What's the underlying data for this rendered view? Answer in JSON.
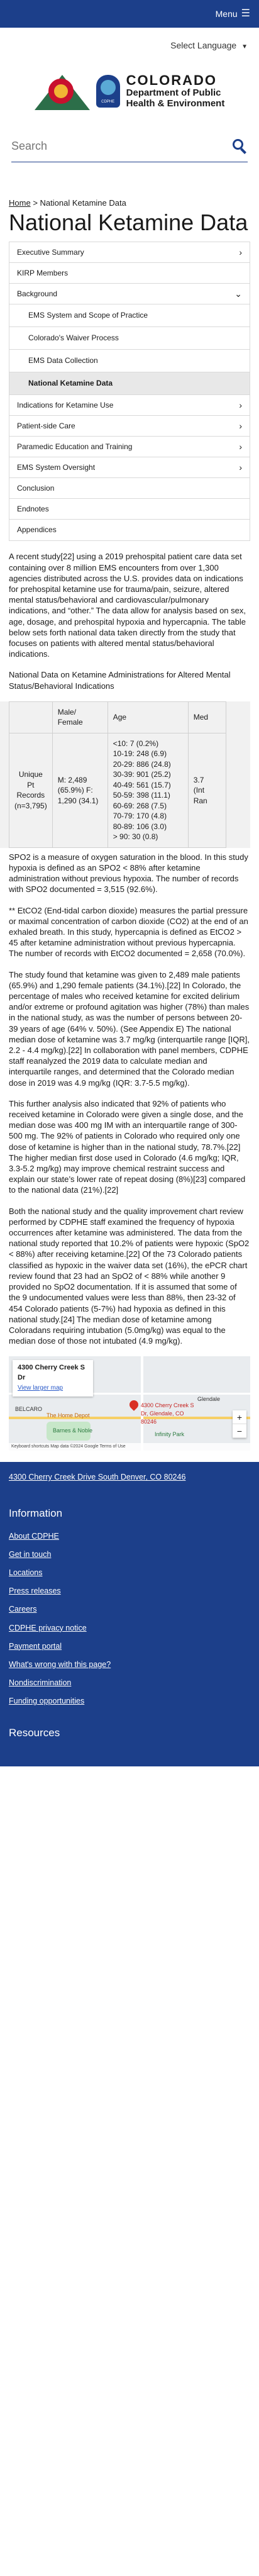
{
  "topbar": {
    "menu_label": "Menu",
    "menu_icon": "hamburger-icon"
  },
  "language": {
    "label": "Select Language"
  },
  "logo": {
    "state": "COLORADO",
    "dept_line1": "Department of Public",
    "dept_line2": "Health & Environment",
    "badge_text": "CDPHE"
  },
  "search": {
    "placeholder": "Search"
  },
  "breadcrumb": {
    "home": "Home",
    "separator": ">",
    "current": "National Ketamine Data"
  },
  "page_title": "National Ketamine Data",
  "sidenav": {
    "items": [
      {
        "label": "Executive Summary",
        "arrow": "›"
      },
      {
        "label": "KIRP Members",
        "arrow": ""
      },
      {
        "label": "Background",
        "arrow": "⌄"
      },
      {
        "label": "EMS System and Scope of Practice",
        "arrow": ""
      },
      {
        "label": "Colorado's Waiver Process",
        "arrow": ""
      },
      {
        "label": "EMS Data Collection",
        "arrow": ""
      },
      {
        "label": "National Ketamine Data",
        "arrow": ""
      },
      {
        "label": "Indications for Ketamine Use",
        "arrow": "›"
      },
      {
        "label": "Patient-side Care",
        "arrow": "›"
      },
      {
        "label": "Paramedic Education and Training",
        "arrow": "›"
      },
      {
        "label": "EMS System Oversight",
        "arrow": "›"
      },
      {
        "label": "Conclusion",
        "arrow": ""
      },
      {
        "label": "Endnotes",
        "arrow": ""
      },
      {
        "label": "Appendices",
        "arrow": ""
      }
    ]
  },
  "content": {
    "intro": "A recent study[22] using a 2019 prehospital patient care data set containing over 8 million EMS encounters from over 1,300 agencies distributed across the U.S. provides data on indications for prehospital ketamine use for trauma/pain, seizure, altered mental status/behavioral and cardiovascular/pulmonary indications, and “other.” The data allow for analysis based on sex, age, dosage, and prehospital hypoxia and hypercapnia. The table below sets forth national data taken directly from the study that focuses on patients with altered mental status/behavioral indications.",
    "table_caption": "National Data on Ketamine Administrations for Altered Mental Status/Behavioral Indications",
    "table": {
      "headers": [
        "",
        "Male/ Female",
        "Age",
        "Med"
      ],
      "row_label": "Unique Pt Records (n=3,795)",
      "sex": "M: 2,489 (65.9%) F: 1,290 (34.1)",
      "ages": [
        "<10: 7 (0.2%)",
        "10-19: 248 (6.9)",
        "20-29: 886 (24.8)",
        "30-39: 901 (25.2)",
        "40-49: 561 (15.7)",
        "50-59: 398 (11.1)",
        "60-69: 268 (7.5)",
        "70-79: 170 (4.8)",
        "80-89: 106 (3.0)",
        "> 90: 30 (0.8)"
      ],
      "median_lines": [
        "3.7",
        "(Int",
        "Ran"
      ]
    },
    "footnote_spo2": "SPO2 is a measure of oxygen saturation in the blood. In this study hypoxia is defined as an SPO2 < 88% after ketamine administration without previous hypoxia. The number of records with SPO2 documented = 3,515 (92.6%).",
    "footnote_etco2": "** EtCO2 (End-tidal carbon dioxide) measures the partial pressure or maximal concentration of carbon dioxide (CO2) at the end of an exhaled breath. In this study, hypercapnia is defined as EtCO2 > 45 after ketamine administration without previous hypercapnia. The number of records with EtCO2 documented = 2,658 (70.0%).",
    "para2": "The study found that ketamine was given to 2,489 male patients (65.9%) and 1,290 female patients (34.1%).[22] In Colorado, the percentage of males who received ketamine for excited delirium and/or extreme or profound agitation was higher (78%) than males in the national study, as was the number of persons between 20-39 years of age (64% v. 50%). (See Appendix E) The national median dose of ketamine was 3.7 mg/kg (interquartile range [IQR], 2.2 - 4.4 mg/kg).[22] In collaboration with panel members, CDPHE staff reanalyzed the 2019 data to calculate median and interquartile ranges, and determined that the Colorado median dose in 2019 was 4.9 mg/kg (IQR: 3.7-5.5 mg/kg).",
    "para3": "This further analysis also indicated that 92% of patients who received ketamine in Colorado were given a single dose, and the median dose was 400 mg IM with an interquartile range of 300-500 mg. The 92% of patients in Colorado who required only one dose of ketamine is higher than in the national study, 78.7%.[22] The higher median first dose used in Colorado (4.6 mg/kg; IQR, 3.3-5.2 mg/kg) may improve chemical restraint success and explain our state’s lower rate of repeat dosing (8%)[23] compared to the national data (21%).[22]",
    "para4": "Both the national study and the quality improvement chart review performed by CDPHE staff examined the frequency of hypoxia occurrences after ketamine was administered. The data from the national study reported that 10.2% of patients were hypoxic (SpO2 < 88%) after receiving ketamine.[22] Of the 73 Colorado patients classified as hypoxic in the waiver data set (16%), the ePCR chart review found that 23 had an SpO2 of < 88% while another 9 provided no SpO2 documentation. If it is assumed that some of the 9 undocumented values were less than 88%, then 23-32 of 454 Colorado patients (5-7%) had hypoxia as defined in this national study.[24] The median dose of ketamine among Coloradans requiring intubation (5.0mg/kg) was equal to the median dose of those not intubated (4.9 mg/kg)."
  },
  "map": {
    "place_name": "4300 Cherry Creek S Dr",
    "larger_map": "View larger map",
    "pin_label": "4300 Cherry Creek S Dr, Glendale, CO 80246",
    "labels": [
      "BELCARO",
      "The Home Depot",
      "Barnes & Noble",
      "Infinity Park",
      "Glendale"
    ],
    "attribution": "Keyboard shortcuts   Map data ©2024 Google   Terms of Use",
    "zoom_in": "+",
    "zoom_out": "−"
  },
  "footer": {
    "address": "4300 Cherry Creek Drive South Denver, CO 80246",
    "info_heading": "Information",
    "links": [
      "About CDPHE",
      "Get in touch",
      "Locations",
      "Press releases",
      "Careers",
      "CDPHE privacy notice",
      "Payment portal",
      "What's wrong with this page?",
      "Nondiscrimination",
      "Funding opportunities"
    ],
    "resources_heading": "Resources"
  }
}
